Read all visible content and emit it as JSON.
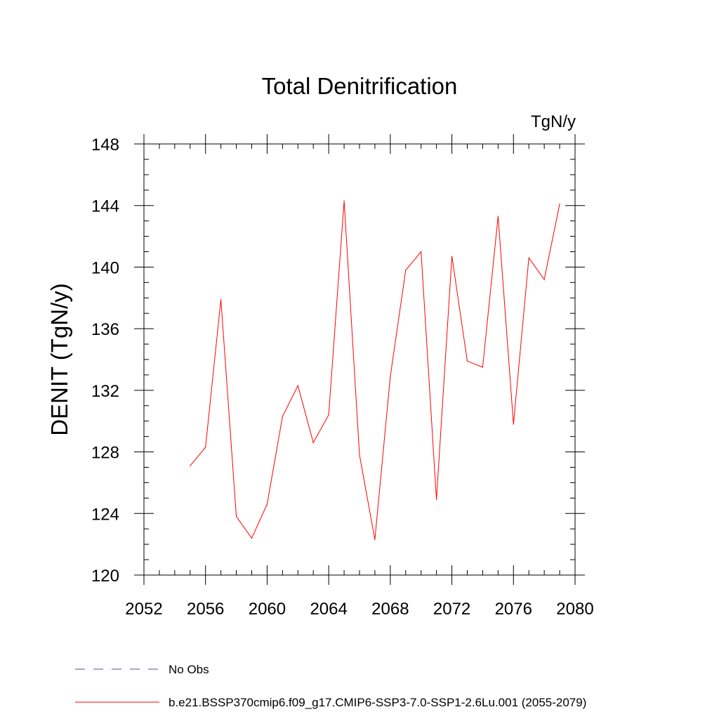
{
  "chart_data": {
    "type": "line",
    "title": "Total Denitrification",
    "units": "TgN/y",
    "ylabel": "DENIT  (TgN/y)",
    "xlabel": "",
    "xlim": [
      2052,
      2080
    ],
    "ylim": [
      120,
      148
    ],
    "x_ticks": [
      2052,
      2056,
      2060,
      2064,
      2068,
      2072,
      2076,
      2080
    ],
    "y_ticks": [
      120,
      124,
      128,
      132,
      136,
      140,
      144,
      148
    ],
    "x_minor_step": 1,
    "y_minor_step": 1,
    "grid": false,
    "legend_position": "bottom",
    "series": [
      {
        "name": "b.e21.BSSP370cmip6.f09_g17.CMIP6-SSP3-7.0-SSP1-2.6Lu.001 (2055-2079)",
        "color": "#ff0000",
        "x": [
          2055,
          2056,
          2057,
          2058,
          2059,
          2060,
          2061,
          2062,
          2063,
          2064,
          2065,
          2066,
          2067,
          2068,
          2069,
          2070,
          2071,
          2072,
          2073,
          2074,
          2075,
          2076,
          2077,
          2078,
          2079
        ],
        "y": [
          127.1,
          128.3,
          137.9,
          123.8,
          122.4,
          124.6,
          130.3,
          132.3,
          128.6,
          130.4,
          144.3,
          127.8,
          122.3,
          132.9,
          139.8,
          141.0,
          124.9,
          140.7,
          133.9,
          133.5,
          143.3,
          129.8,
          140.6,
          139.2,
          144.1
        ]
      }
    ],
    "legend": [
      {
        "label": "No Obs",
        "color": "#5a4aa8",
        "dash": "dashed"
      },
      {
        "label": "b.e21.BSSP370cmip6.f09_g17.CMIP6-SSP3-7.0-SSP1-2.6Lu.001 (2055-2079)",
        "color": "#ff0000",
        "dash": "solid"
      }
    ]
  }
}
